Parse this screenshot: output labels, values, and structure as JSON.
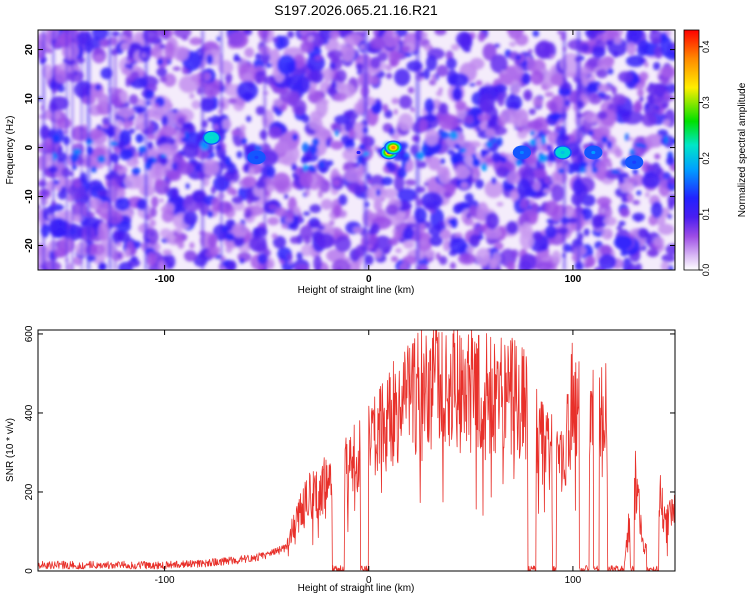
{
  "title": "S197.2026.065.21.16.R21",
  "chart_data": [
    {
      "type": "heatmap",
      "title": "S197.2026.065.21.16.R21",
      "xlabel": "Height of straight line (km)",
      "ylabel": "Frequency (Hz)",
      "xlim": [
        -162,
        150
      ],
      "ylim": [
        -25,
        24
      ],
      "xticks": [
        -100,
        0,
        100
      ],
      "yticks": [
        -20,
        -10,
        0,
        10,
        20
      ],
      "colorbar": {
        "label": "Normalized spectral amplitude",
        "range": [
          0.0,
          0.43
        ],
        "ticks": [
          "0.0",
          "0.1",
          "0.2",
          "0.3",
          "0.4"
        ]
      },
      "hot_spots": [
        {
          "x": 10,
          "y": -1,
          "amplitude": 0.42
        },
        {
          "x": 12,
          "y": 0,
          "amplitude": 0.38
        },
        {
          "x": -77,
          "y": 2,
          "amplitude": 0.22
        },
        {
          "x": 95,
          "y": -1,
          "amplitude": 0.2
        },
        {
          "x": 110,
          "y": -1,
          "amplitude": 0.18
        },
        {
          "x": 75,
          "y": -1,
          "amplitude": 0.17
        },
        {
          "x": -55,
          "y": -2,
          "amplitude": 0.14
        },
        {
          "x": 130,
          "y": -3,
          "amplitude": 0.14
        },
        {
          "x": -5,
          "y": -1,
          "amplitude": 0.12
        }
      ],
      "colors": [
        "#ffffff",
        "#d9b8f5",
        "#9d4de6",
        "#6a1ee8",
        "#2222ff",
        "#00a0ff",
        "#00e6c8",
        "#00e000",
        "#ffee00",
        "#ff8a00",
        "#ff0000"
      ]
    },
    {
      "type": "line",
      "xlabel": "Height of straight line (km)",
      "ylabel": "SNR (10 * v/v)",
      "xlim": [
        -162,
        150
      ],
      "ylim": [
        0,
        610
      ],
      "xticks": [
        -100,
        0,
        100
      ],
      "yticks": [
        0,
        200,
        400,
        600
      ],
      "color": "#e8302a",
      "series": [
        {
          "x": [
            -162,
            -140,
            -120,
            -100,
            -80,
            -60,
            -50,
            -40,
            -35,
            -30,
            -25,
            -20,
            -15,
            -10,
            -5,
            0,
            5,
            10,
            15,
            20,
            25,
            30,
            40,
            50,
            60,
            70,
            78,
            80,
            85,
            90,
            95,
            100,
            105,
            110,
            115,
            120,
            125,
            130,
            135,
            140,
            145,
            150
          ],
          "y": [
            15,
            15,
            15,
            15,
            20,
            30,
            40,
            60,
            140,
            180,
            200,
            220,
            240,
            270,
            290,
            320,
            340,
            380,
            420,
            440,
            460,
            470,
            460,
            460,
            450,
            440,
            430,
            420,
            330,
            300,
            280,
            440,
            420,
            400,
            450,
            200,
            0,
            260,
            40,
            280,
            120,
            150
          ]
        }
      ]
    }
  ]
}
